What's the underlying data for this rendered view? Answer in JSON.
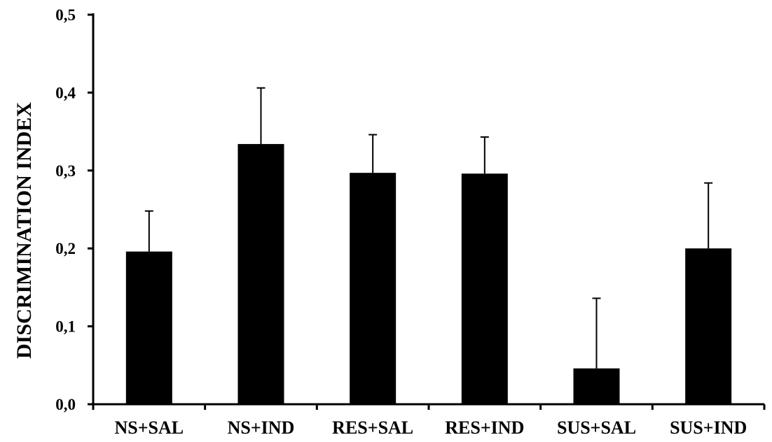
{
  "chart_data": {
    "type": "bar",
    "title": "",
    "xlabel": "",
    "ylabel": "DISCRIMINATION INDEX",
    "categories": [
      "NS+SAL",
      "NS+IND",
      "RES+SAL",
      "RES+IND",
      "SUS+SAL",
      "SUS+IND"
    ],
    "values": [
      0.196,
      0.334,
      0.297,
      0.296,
      0.046,
      0.2
    ],
    "error_bars": [
      0.052,
      0.072,
      0.049,
      0.047,
      0.09,
      0.084
    ],
    "ylim": [
      0.0,
      0.5
    ],
    "yticks": [
      0.0,
      0.1,
      0.2,
      0.3,
      0.4,
      0.5
    ],
    "ytick_labels": [
      "0,0",
      "0,1",
      "0,2",
      "0,3",
      "0,4",
      "0,5"
    ],
    "grid": false,
    "legend": "none",
    "bar_color": "#000000"
  }
}
